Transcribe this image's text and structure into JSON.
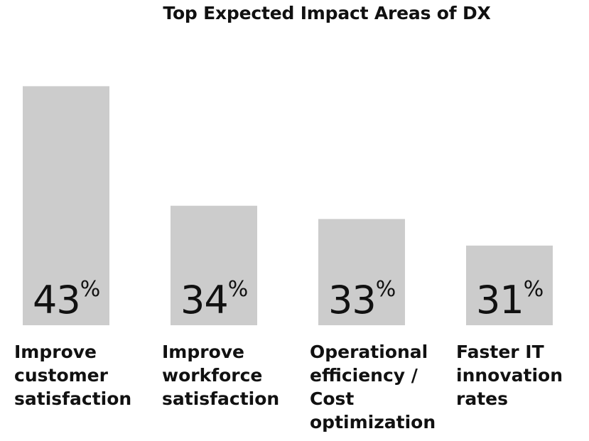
{
  "chart_data": {
    "type": "bar",
    "title": "Top Expected Impact Areas of DX",
    "xlabel": "",
    "ylabel": "",
    "categories": [
      [
        "Improve",
        "customer",
        "satisfaction"
      ],
      [
        "Improve",
        "workforce",
        "satisfaction"
      ],
      [
        "Operational",
        "efficiency /",
        "Cost",
        "optimization"
      ],
      [
        "Faster IT",
        "innovation",
        "rates"
      ]
    ],
    "values": [
      43,
      34,
      33,
      31
    ],
    "value_suffix": "%",
    "ylim": [
      25,
      45
    ],
    "grid": false,
    "legend": "none",
    "bar_color": "#cccccc",
    "text_color": "#111111"
  }
}
